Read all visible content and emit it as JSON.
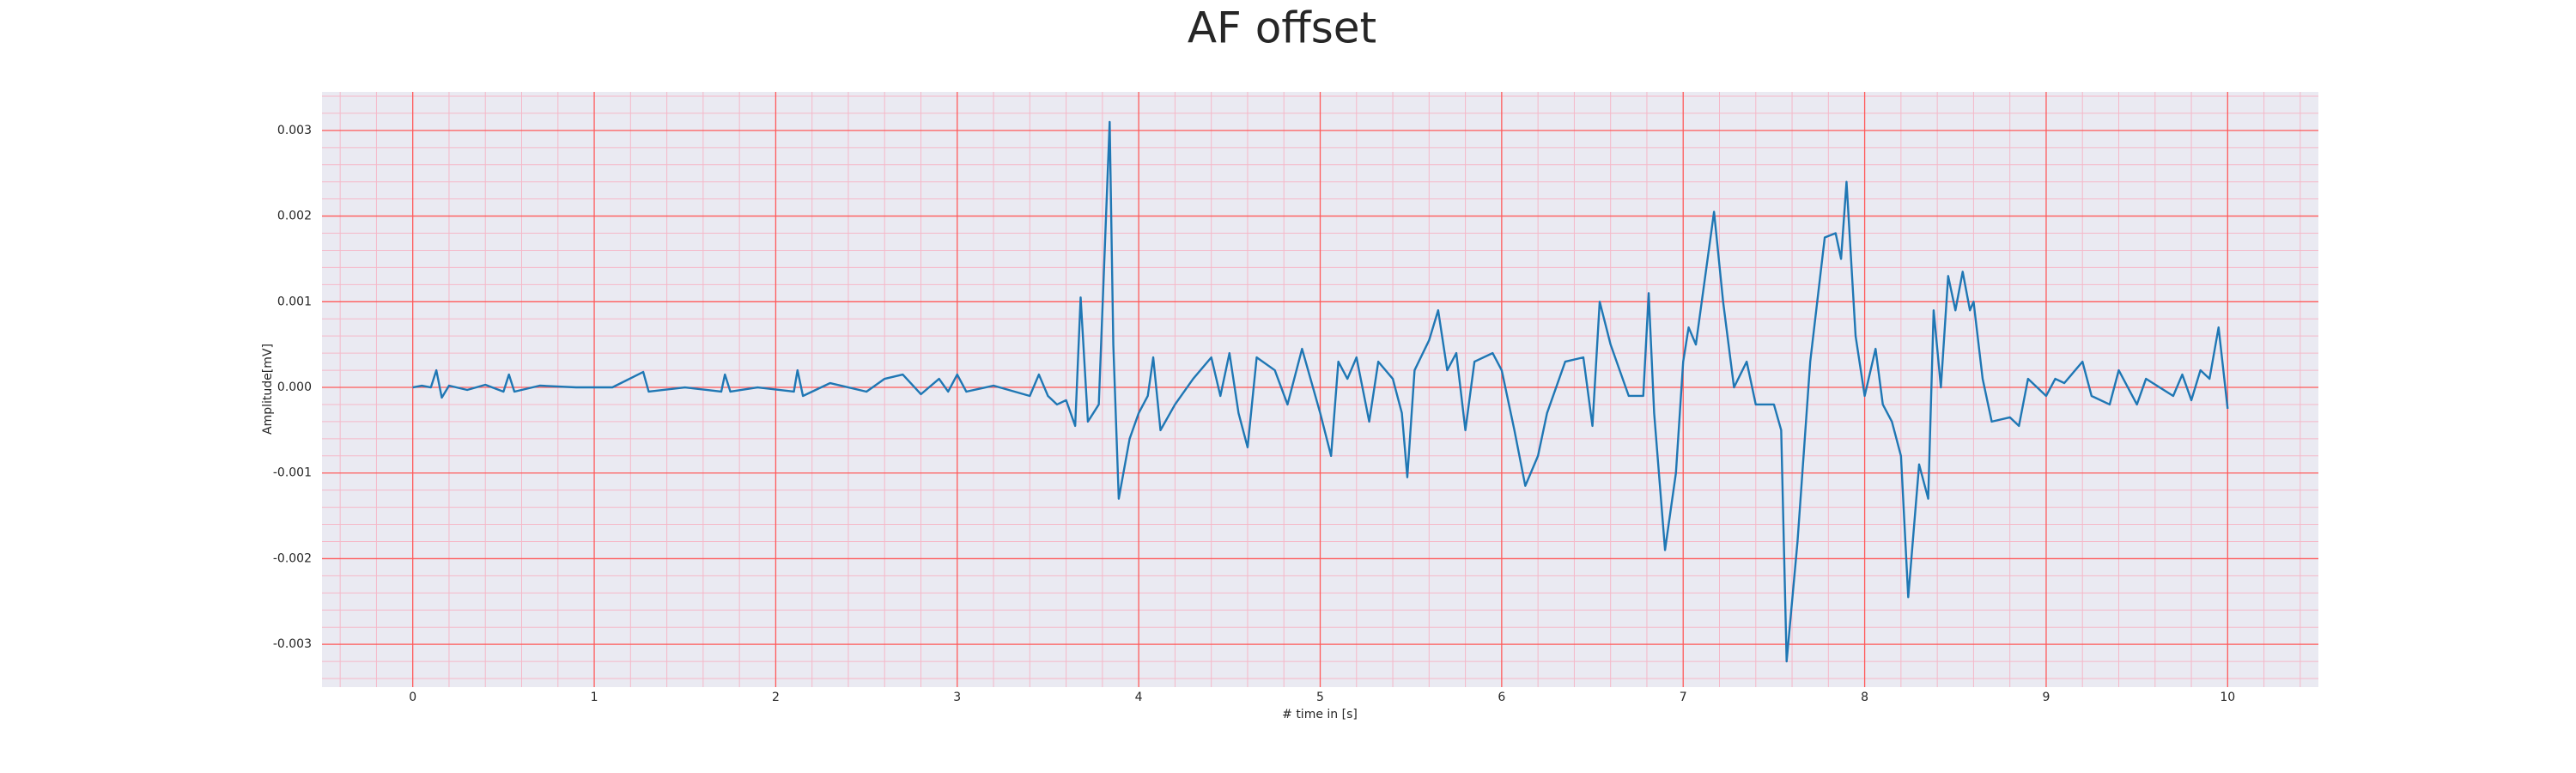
{
  "chart_data": {
    "type": "line",
    "title": "AF offset",
    "xlabel": "# time in [s]",
    "ylabel": "Amplitude[mV]",
    "xlim": [
      -0.5,
      10.5
    ],
    "ylim": [
      -0.0035,
      0.00345
    ],
    "xticks": [
      0,
      1,
      2,
      3,
      4,
      5,
      6,
      7,
      8,
      9,
      10
    ],
    "yticks": [
      -0.003,
      -0.002,
      -0.001,
      {
        "value": 0,
        "label": "0.000"
      },
      0.001,
      0.002,
      0.003
    ],
    "xminorticks": [
      -0.4,
      -0.2,
      0.2,
      0.4,
      0.6,
      0.8,
      1.2,
      1.4,
      1.6,
      1.8,
      2.2,
      2.4,
      2.6,
      2.8,
      3.2,
      3.4,
      3.6,
      3.8,
      4.2,
      4.4,
      4.6,
      4.8,
      5.2,
      5.4,
      5.6,
      5.8,
      6.2,
      6.4,
      6.6,
      6.8,
      7.2,
      7.4,
      7.6,
      7.8,
      8.2,
      8.4,
      8.6,
      8.8,
      9.2,
      9.4,
      9.6,
      9.8,
      10.2,
      10.4
    ],
    "yminorticks": [
      -0.0034,
      -0.0032,
      -0.0028,
      -0.0026,
      -0.0024,
      -0.0022,
      -0.0018,
      -0.0016,
      -0.0014,
      -0.0012,
      -0.0008,
      -0.0006,
      -0.0004,
      -0.0002,
      0.0002,
      0.0004,
      0.0006,
      0.0008,
      0.0012,
      0.0014,
      0.0016,
      0.0018,
      0.0022,
      0.0024,
      0.0026,
      0.0028,
      0.0032,
      0.0034
    ],
    "grid": true,
    "background": "#eaeaf2",
    "grid_color": "#ff5a5a",
    "minor_grid_color": "#f5b8c8",
    "color": "#1f77b4",
    "x": [
      0,
      0.05,
      0.1,
      0.13,
      0.16,
      0.2,
      0.3,
      0.4,
      0.5,
      0.53,
      0.56,
      0.7,
      0.9,
      1.1,
      1.27,
      1.3,
      1.5,
      1.7,
      1.72,
      1.75,
      1.9,
      2.1,
      2.12,
      2.15,
      2.3,
      2.5,
      2.6,
      2.7,
      2.8,
      2.9,
      2.95,
      3.0,
      3.05,
      3.2,
      3.4,
      3.45,
      3.5,
      3.55,
      3.6,
      3.65,
      3.68,
      3.72,
      3.78,
      3.84,
      3.86,
      3.89,
      3.95,
      4.0,
      4.05,
      4.08,
      4.12,
      4.2,
      4.3,
      4.4,
      4.45,
      4.5,
      4.55,
      4.6,
      4.65,
      4.75,
      4.82,
      4.9,
      5.0,
      5.06,
      5.1,
      5.15,
      5.2,
      5.27,
      5.32,
      5.4,
      5.45,
      5.48,
      5.52,
      5.6,
      5.65,
      5.7,
      5.75,
      5.8,
      5.85,
      5.95,
      6.0,
      6.07,
      6.13,
      6.2,
      6.25,
      6.35,
      6.45,
      6.5,
      6.54,
      6.6,
      6.7,
      6.78,
      6.81,
      6.84,
      6.9,
      6.96,
      7.0,
      7.03,
      7.07,
      7.17,
      7.22,
      7.28,
      7.35,
      7.4,
      7.5,
      7.54,
      7.57,
      7.63,
      7.7,
      7.78,
      7.84,
      7.87,
      7.9,
      7.95,
      8.0,
      8.06,
      8.1,
      8.15,
      8.2,
      8.24,
      8.3,
      8.35,
      8.38,
      8.42,
      8.46,
      8.5,
      8.54,
      8.58,
      8.6,
      8.65,
      8.7,
      8.8,
      8.85,
      8.9,
      9.0,
      9.05,
      9.1,
      9.2,
      9.25,
      9.35,
      9.4,
      9.5,
      9.55,
      9.7,
      9.75,
      9.8,
      9.85,
      9.9,
      9.95,
      10.0
    ],
    "values": [
      0,
      2e-05,
      0,
      0.0002,
      -0.00012,
      2e-05,
      -3e-05,
      3e-05,
      -5e-05,
      0.00015,
      -5e-05,
      2e-05,
      0,
      0,
      0.00018,
      -5e-05,
      0,
      -5e-05,
      0.00015,
      -5e-05,
      0,
      -5e-05,
      0.0002,
      -0.0001,
      5e-05,
      -5e-05,
      0.0001,
      0.00015,
      -8e-05,
      0.0001,
      -5e-05,
      0.00015,
      -5e-05,
      2e-05,
      -0.0001,
      0.00015,
      -0.0001,
      -0.0002,
      -0.00015,
      -0.00045,
      0.00105,
      -0.0004,
      -0.0002,
      0.0031,
      0.0005,
      -0.0013,
      -0.0006,
      -0.0003,
      -0.0001,
      0.00035,
      -0.0005,
      -0.0002,
      0.0001,
      0.00035,
      -0.0001,
      0.0004,
      -0.0003,
      -0.0007,
      0.00035,
      0.0002,
      -0.0002,
      0.00045,
      -0.0003,
      -0.0008,
      0.0003,
      0.0001,
      0.00035,
      -0.0004,
      0.0003,
      0.0001,
      -0.0003,
      -0.00105,
      0.0002,
      0.00055,
      0.0009,
      0.0002,
      0.0004,
      -0.0005,
      0.0003,
      0.0004,
      0.0002,
      -0.0005,
      -0.00115,
      -0.0008,
      -0.0003,
      0.0003,
      0.00035,
      -0.00045,
      0.001,
      0.0005,
      -0.0001,
      -0.0001,
      0.0011,
      -0.0003,
      -0.0019,
      -0.001,
      0.0003,
      0.0007,
      0.0005,
      0.00205,
      0.001,
      0,
      0.0003,
      -0.0002,
      -0.0002,
      -0.0005,
      -0.0032,
      -0.0018,
      0.0003,
      0.00175,
      0.0018,
      0.0015,
      0.0024,
      0.0006,
      -0.0001,
      0.00045,
      -0.0002,
      -0.0004,
      -0.0008,
      -0.00245,
      -0.0009,
      -0.0013,
      0.0009,
      0,
      0.0013,
      0.0009,
      0.00135,
      0.0009,
      0.001,
      0.0001,
      -0.0004,
      -0.00035,
      -0.00045,
      0.0001,
      -0.0001,
      0.0001,
      5e-05,
      0.0003,
      -0.0001,
      -0.0002,
      0.0002,
      -0.0002,
      0.0001,
      -0.0001,
      0.00015,
      -0.00015,
      0.0002,
      0.0001,
      0.0007,
      -0.00025
    ]
  }
}
